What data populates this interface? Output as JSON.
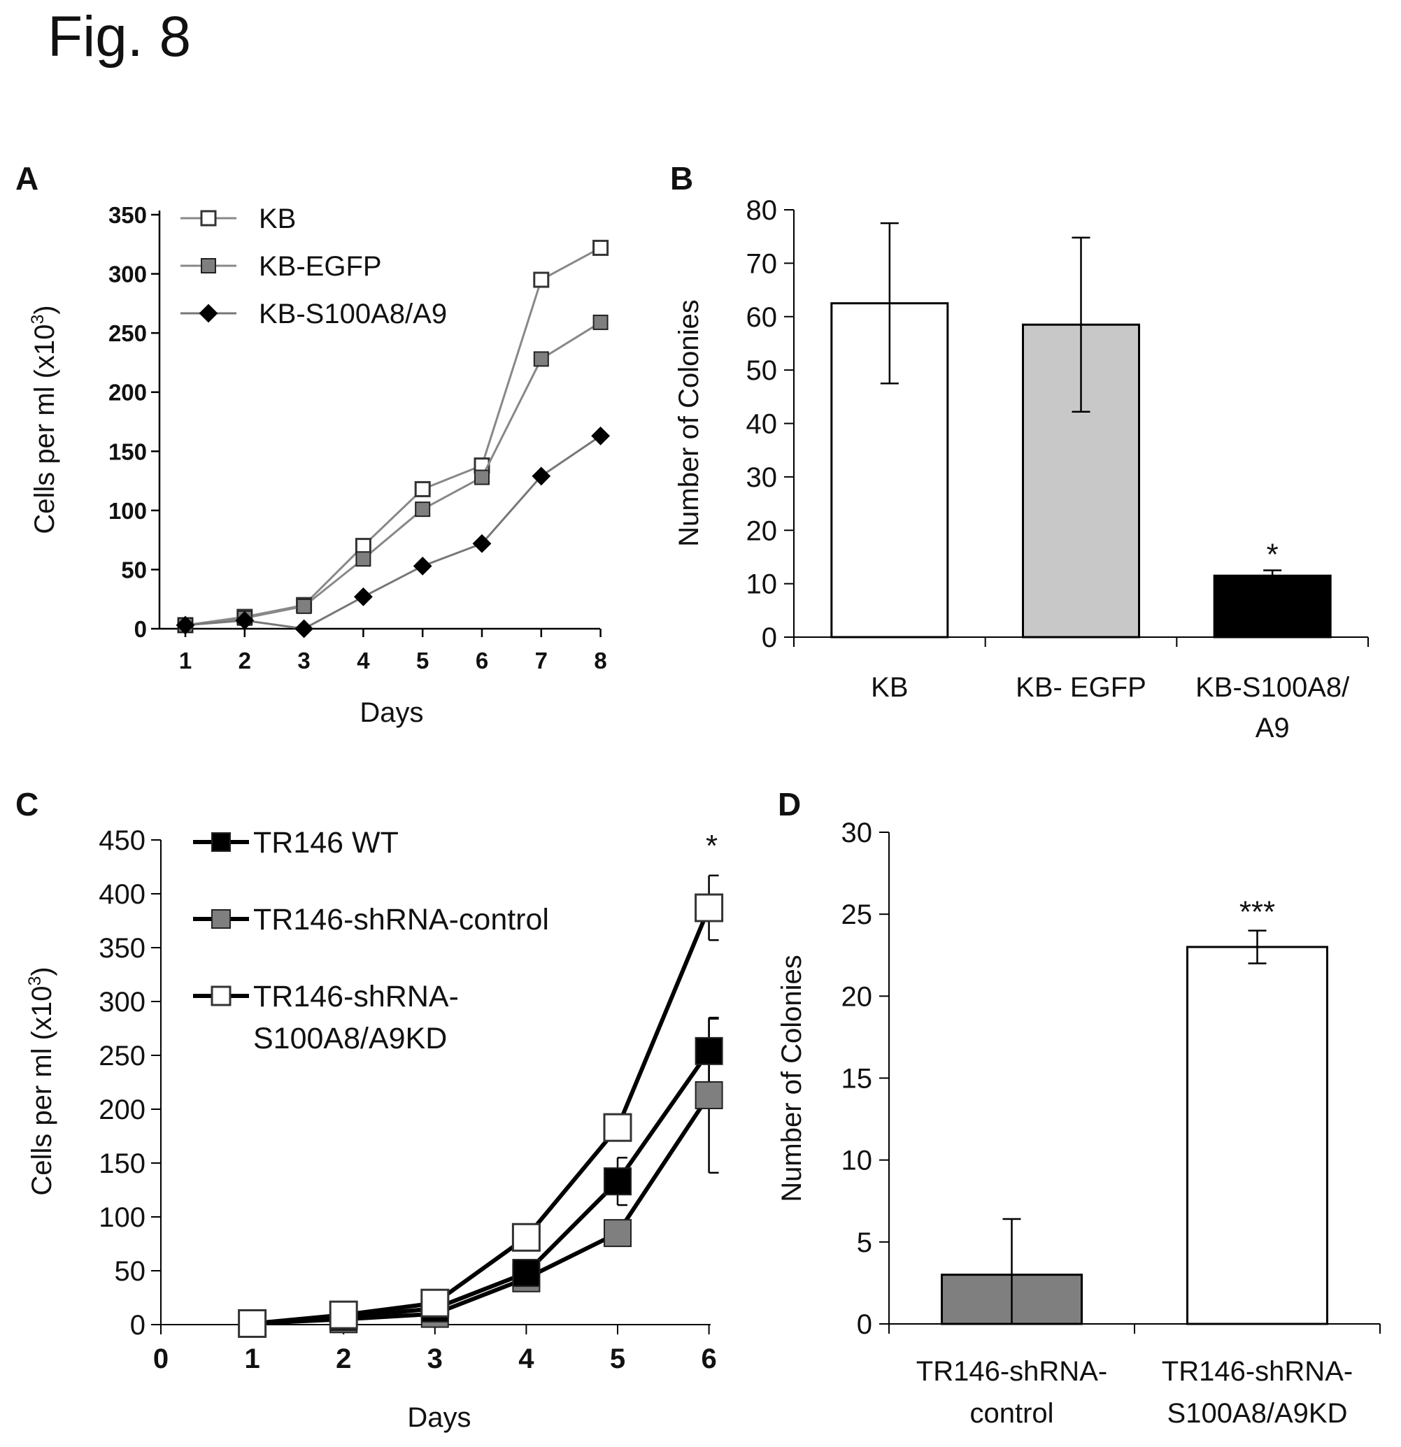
{
  "figure_title": "Fig. 8",
  "chart_data": [
    {
      "panel": "A",
      "type": "line",
      "xlabel": "Days",
      "ylabel": "Cells per ml (x10",
      "ylabel_sup": "3",
      "ylabel_suffix": ")",
      "x": [
        1,
        2,
        3,
        4,
        5,
        6,
        7,
        8
      ],
      "xticks": [
        "1",
        "2",
        "3",
        "4",
        "5",
        "6",
        "7",
        "8"
      ],
      "yticks": [
        "0",
        "50",
        "100",
        "150",
        "200",
        "250",
        "300",
        "350"
      ],
      "ylim": [
        0,
        350
      ],
      "legend_position": "top-left",
      "series": [
        {
          "name": "KB",
          "marker": "square-open",
          "color": "#ffffff",
          "line_color": "#888888",
          "values": [
            3,
            10,
            20,
            70,
            118,
            138,
            295,
            322
          ]
        },
        {
          "name": "KB-EGFP",
          "marker": "square-filled",
          "color": "#7f7f7f",
          "line_color": "#888888",
          "values": [
            3,
            9,
            19,
            59,
            101,
            128,
            228,
            259
          ]
        },
        {
          "name": "KB-S100A8/A9",
          "marker": "diamond",
          "color": "#000000",
          "line_color": "#777777",
          "values": [
            3,
            7,
            0,
            27,
            53,
            72,
            129,
            163
          ]
        }
      ]
    },
    {
      "panel": "B",
      "type": "bar",
      "ylabel": "Number of Colonies",
      "categories": [
        "KB",
        "KB- EGFP",
        "KB-S100A8/\nA9"
      ],
      "values": [
        62.5,
        58.5,
        11.5
      ],
      "errors": [
        15,
        16.3,
        1
      ],
      "bar_colors": [
        "#ffffff",
        "#c8c8c8",
        "#000000"
      ],
      "yticks": [
        "0",
        "10",
        "20",
        "30",
        "40",
        "50",
        "60",
        "70",
        "80"
      ],
      "ylim": [
        0,
        80
      ],
      "annotations": [
        "",
        "",
        "*"
      ]
    },
    {
      "panel": "C",
      "type": "line",
      "xlabel": "Days",
      "ylabel": "Cells per ml (x10",
      "ylabel_sup": "3",
      "ylabel_suffix": ")",
      "x": [
        1,
        2,
        3,
        4,
        5,
        6
      ],
      "xticks": [
        "0",
        "1",
        "2",
        "3",
        "4",
        "5",
        "6"
      ],
      "yticks": [
        "0",
        "50",
        "100",
        "150",
        "200",
        "250",
        "300",
        "350",
        "400",
        "450"
      ],
      "ylim": [
        0,
        450
      ],
      "legend_position": "top-left",
      "annotation": "*",
      "series": [
        {
          "name": "TR146 WT",
          "marker": "square-filled",
          "color": "#000000",
          "values": [
            1,
            7,
            15,
            48,
            133,
            254
          ],
          "errors": [
            0,
            0,
            0,
            0,
            22,
            30
          ]
        },
        {
          "name": "TR146-shRNA-control",
          "marker": "square-filled",
          "color": "#7f7f7f",
          "values": [
            1,
            5,
            10,
            43,
            85,
            213
          ],
          "errors": [
            0,
            0,
            0,
            0,
            0,
            72
          ]
        },
        {
          "name": "TR146-shRNA-\nS100A8/A9KD",
          "marker": "square-open",
          "color": "#ffffff",
          "values": [
            1,
            9,
            20,
            81,
            183,
            387
          ],
          "errors": [
            0,
            0,
            0,
            0,
            0,
            30
          ]
        }
      ]
    },
    {
      "panel": "D",
      "type": "bar",
      "ylabel": "Number of Colonies",
      "categories": [
        "TR146-shRNA-\ncontrol",
        "TR146-shRNA-\nS100A8/A9KD"
      ],
      "values": [
        3,
        23
      ],
      "errors": [
        3.4,
        1
      ],
      "bar_colors": [
        "#7f7f7f",
        "#ffffff"
      ],
      "yticks": [
        "0",
        "5",
        "10",
        "15",
        "20",
        "25",
        "30"
      ],
      "ylim": [
        0,
        30
      ],
      "annotations": [
        "",
        "***"
      ]
    }
  ]
}
